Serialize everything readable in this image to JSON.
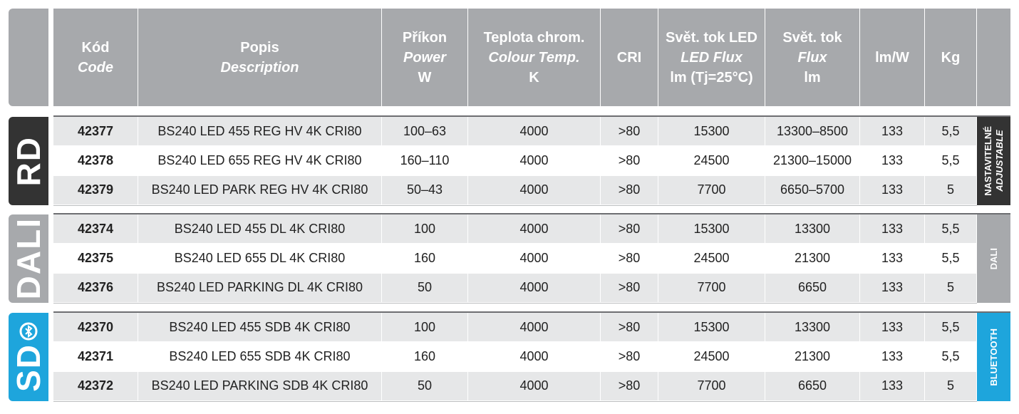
{
  "header": [
    {
      "cz": "Kód",
      "en": "Code"
    },
    {
      "cz": "Popis",
      "en": "Description"
    },
    {
      "cz": "Příkon",
      "en": "Power",
      "unit": "W"
    },
    {
      "cz": "Teplota chrom.",
      "en": "Colour Temp.",
      "unit": "K"
    },
    {
      "cz": "CRI"
    },
    {
      "cz": "Svět. tok LED",
      "en": "LED Flux",
      "unit": "lm (Tj=25°C)"
    },
    {
      "cz": "Svět. tok",
      "en": "Flux",
      "unit": "lm"
    },
    {
      "cz": "lm/W"
    },
    {
      "cz": "Kg"
    }
  ],
  "groups": [
    {
      "label": "RD",
      "side": [
        "NASTAVITELNÉ",
        "ADJUSTABLE"
      ],
      "rows": [
        [
          "42377",
          "BS240 LED 455 REG HV 4K CRI80",
          "100–63",
          "4000",
          ">80",
          "15300",
          "13300–8500",
          "133",
          "5,5"
        ],
        [
          "42378",
          "BS240 LED 655 REG HV 4K CRI80",
          "160–110",
          "4000",
          ">80",
          "24500",
          "21300–15000",
          "133",
          "5,5"
        ],
        [
          "42379",
          "BS240 LED PARK REG HV 4K CRI80",
          "50–43",
          "4000",
          ">80",
          "7700",
          "6650–5700",
          "133",
          "5"
        ]
      ]
    },
    {
      "label": "DALI",
      "side": [
        "DALI"
      ],
      "rows": [
        [
          "42374",
          "BS240 LED 455 DL 4K CRI80",
          "100",
          "4000",
          ">80",
          "15300",
          "13300",
          "133",
          "5,5"
        ],
        [
          "42375",
          "BS240 LED 655 DL 4K CRI80",
          "160",
          "4000",
          ">80",
          "24500",
          "21300",
          "133",
          "5,5"
        ],
        [
          "42376",
          "BS240 LED PARKING DL 4K CRI80",
          "50",
          "4000",
          ">80",
          "7700",
          "6650",
          "133",
          "5"
        ]
      ]
    },
    {
      "label": "SD",
      "side": [
        "BLUETOOTH"
      ],
      "rows": [
        [
          "42370",
          "BS240 LED 455 SDB 4K CRI80",
          "100",
          "4000",
          ">80",
          "15300",
          "13300",
          "133",
          "5,5"
        ],
        [
          "42371",
          "BS240 LED 655 SDB 4K CRI80",
          "160",
          "4000",
          ">80",
          "24500",
          "21300",
          "133",
          "5,5"
        ],
        [
          "42372",
          "BS240 LED PARKING SDB 4K CRI80",
          "50",
          "4000",
          ">80",
          "7700",
          "6650",
          "133",
          "5"
        ]
      ]
    }
  ]
}
